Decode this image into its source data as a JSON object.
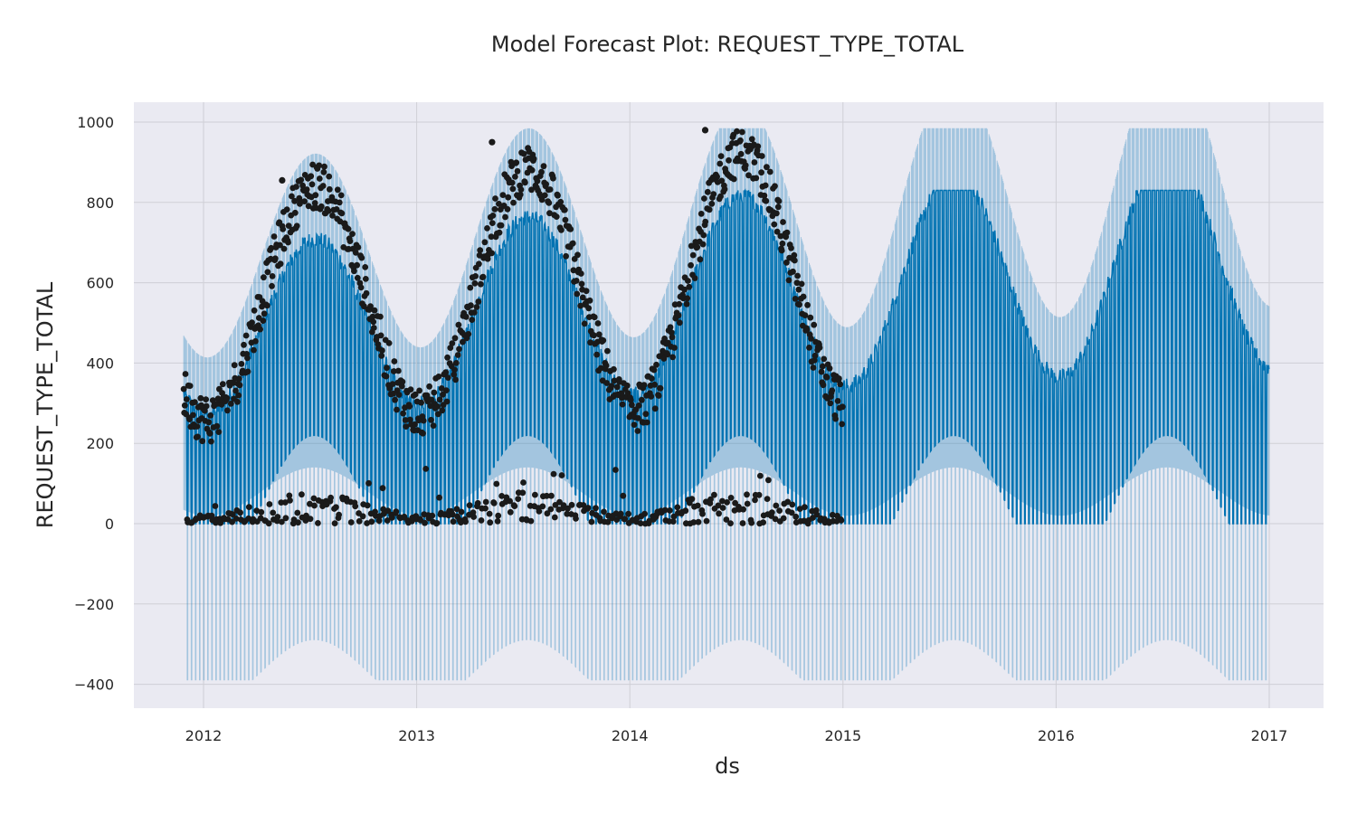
{
  "chart_data": {
    "type": "scatter",
    "title": "Model Forecast Plot: REQUEST_TYPE_TOTAL",
    "xlabel": "ds",
    "ylabel": "REQUEST_TYPE_TOTAL",
    "x_ticks": [
      "2012",
      "2013",
      "2014",
      "2015",
      "2016",
      "2017"
    ],
    "y_ticks": [
      "−400",
      "−200",
      "0",
      "200",
      "400",
      "600",
      "800",
      "1000"
    ],
    "xlim": [
      "2011-09-01",
      "2017-01-25"
    ],
    "ylim": [
      -460,
      1050
    ],
    "grid": true,
    "series": [
      {
        "kind": "observed_points",
        "x_range": [
          "2011-11-28",
          "2015-01-01"
        ],
        "note_points": "daily observations: weekday high level with seasonal peaks, weekend values near zero",
        "seasonal_peaks": [
          {
            "x": "2012-05-15",
            "y": 855
          },
          {
            "x": "2013-05-10",
            "y": 950
          },
          {
            "x": "2014-05-10",
            "y": 980
          }
        ],
        "weekend_level": [
          0,
          80
        ],
        "color": "#1a1a1a"
      },
      {
        "kind": "forecast_yhat",
        "x_range": [
          "2011-11-28",
          "2017-01-01"
        ],
        "low_season_range": [
          0,
          420
        ],
        "high_season_range": [
          150,
          830
        ],
        "color": "#0072b2"
      },
      {
        "kind": "uncertainty_interval",
        "x_range": [
          "2011-11-28",
          "2017-01-01"
        ],
        "lower_min": -390,
        "upper_max": 985,
        "color": "#0072b2",
        "opacity": 0.2
      }
    ]
  },
  "colors": {
    "plot_background": "#eaeaf2",
    "grid": "#cfcfd6",
    "forecast": "#0072b2",
    "observed": "#1a1a1a"
  }
}
